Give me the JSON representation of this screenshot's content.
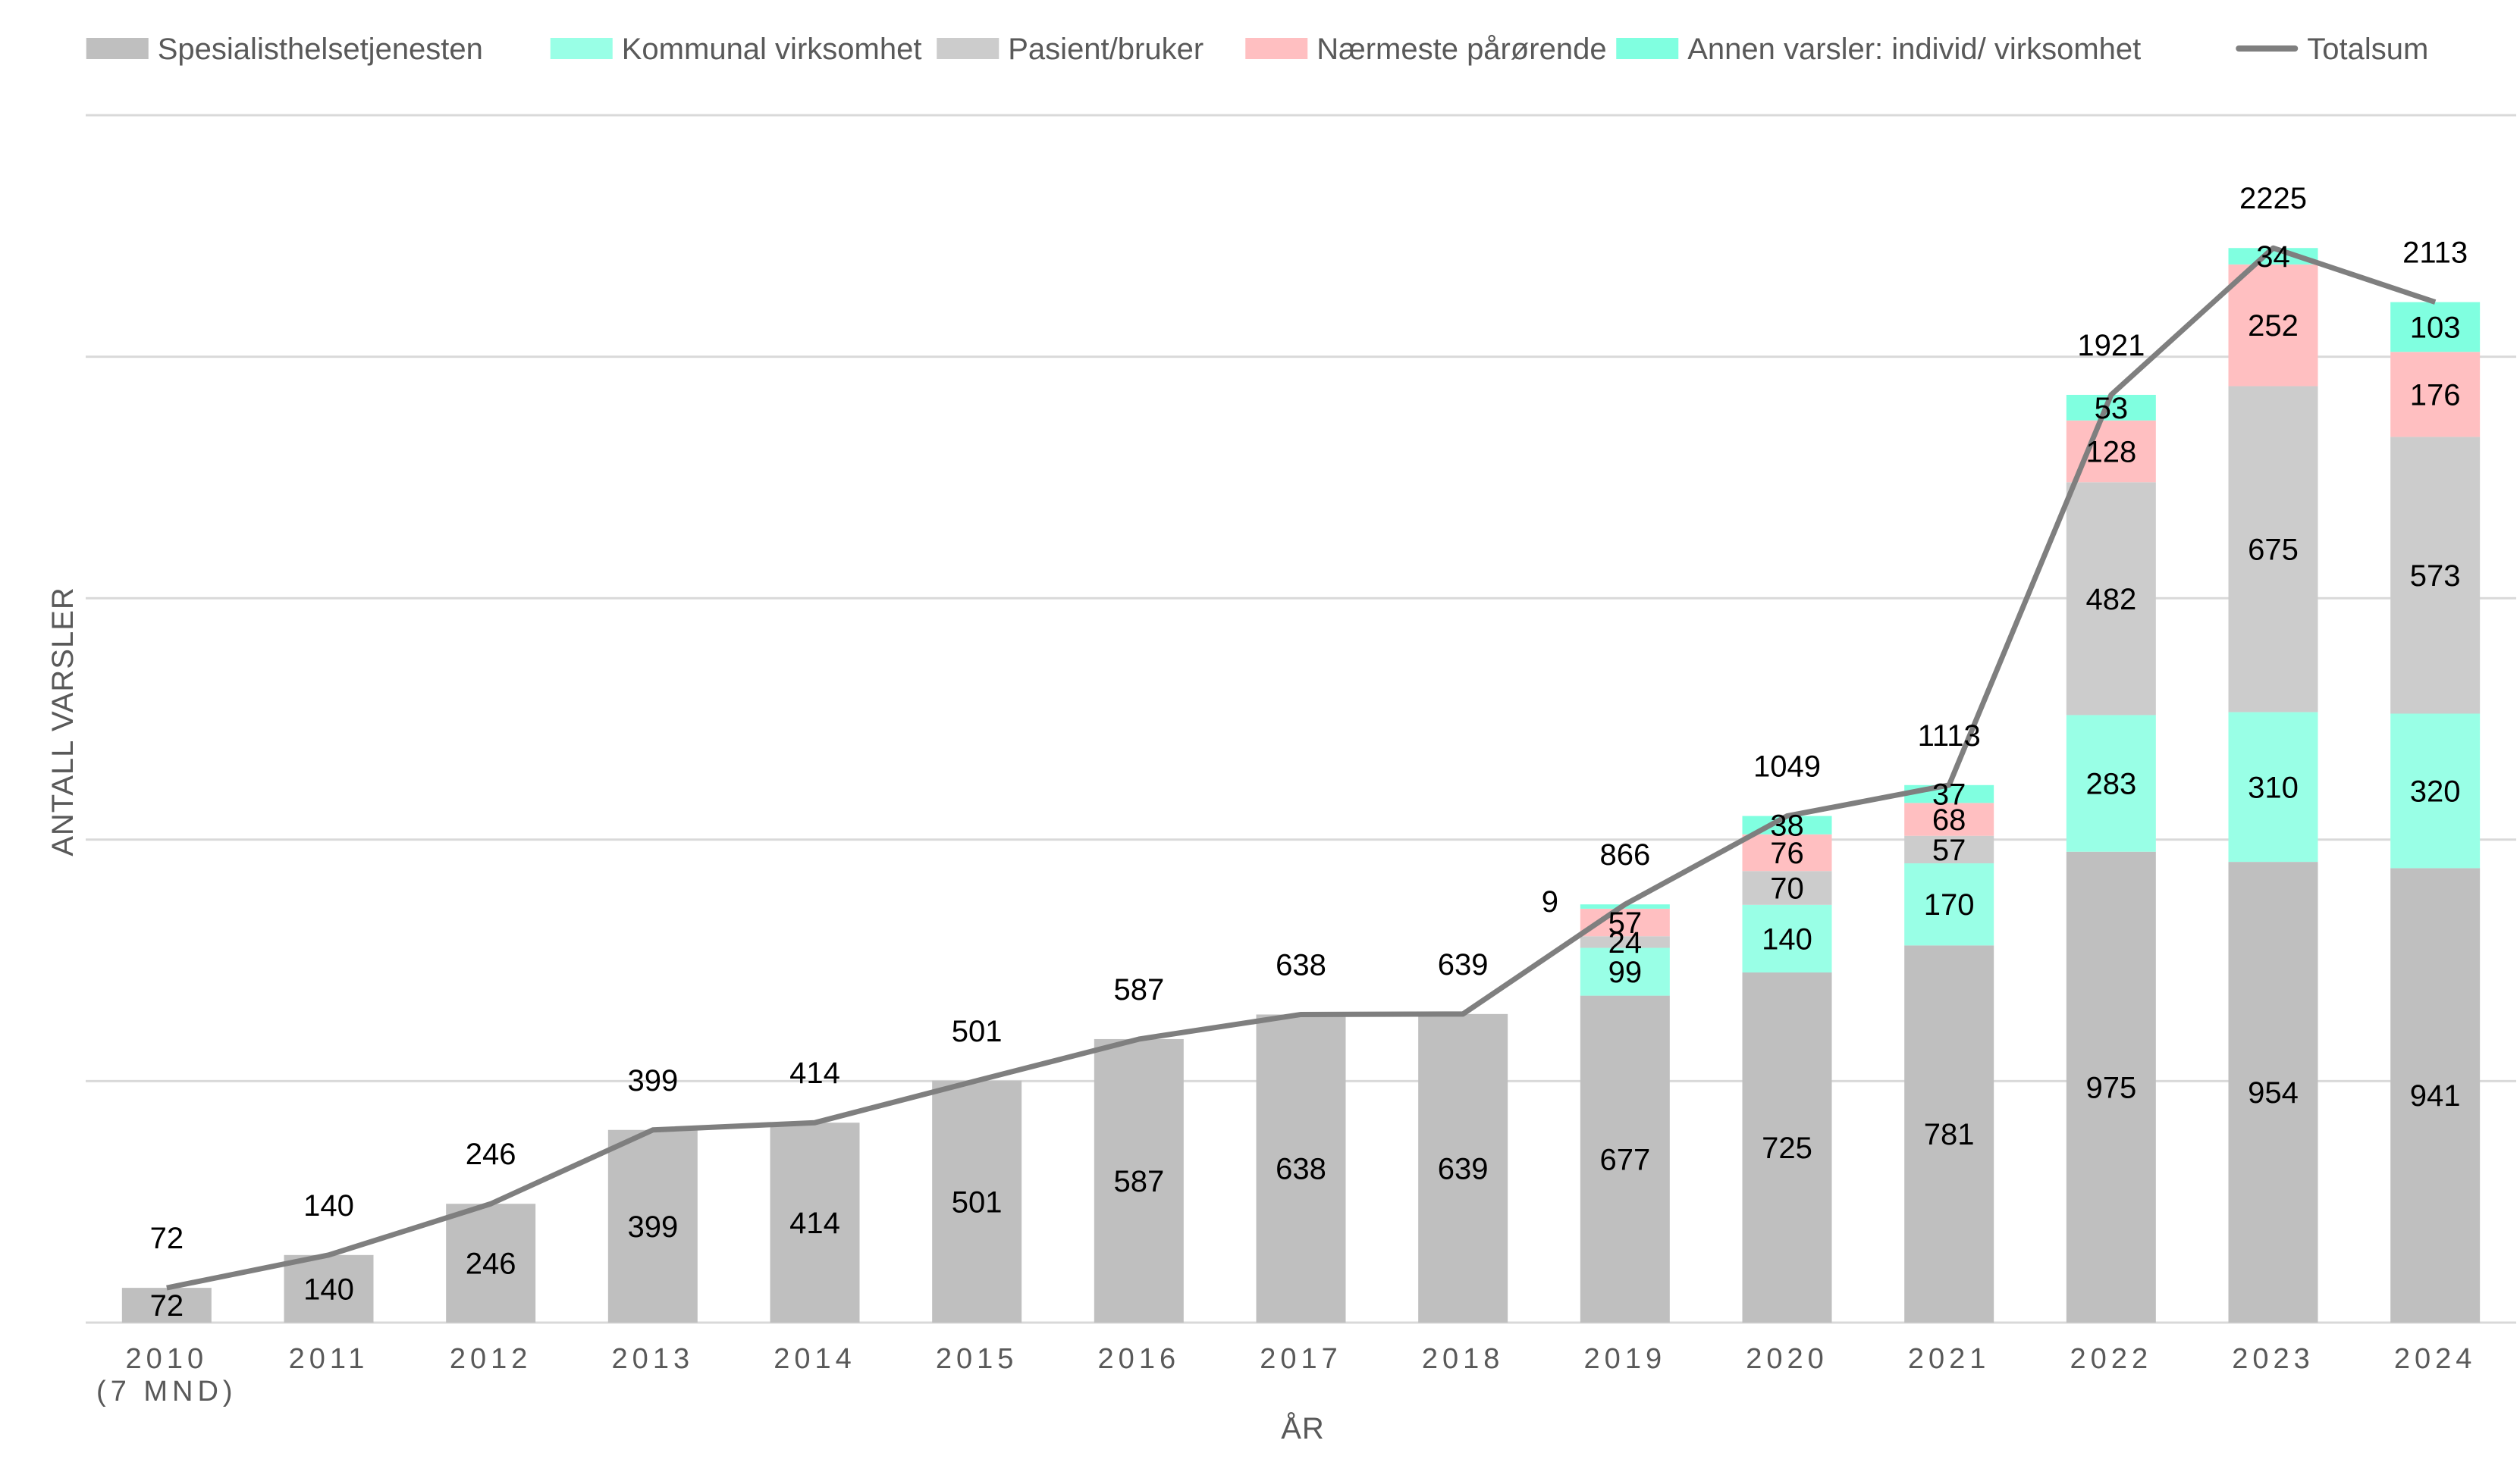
{
  "chart_data": {
    "type": "bar",
    "stacked": true,
    "title": "",
    "xlabel": "ÅR",
    "ylabel": "ANTALL VARSLER",
    "ylim": [
      0,
      2500
    ],
    "grid": true,
    "legend_position": "top",
    "categories": [
      "2010",
      "2011",
      "2012",
      "2013",
      "2014",
      "2015",
      "2016",
      "2017",
      "2018",
      "2019",
      "2020",
      "2021",
      "2022",
      "2023",
      "2024"
    ],
    "category_sublabels": [
      "(7 MND)",
      "",
      "",
      "",
      "",
      "",
      "",
      "",
      "",
      "",
      "",
      "",
      "",
      "",
      ""
    ],
    "series": [
      {
        "name": "Spesialisthelsetjenesten",
        "color": "#BFBFBF",
        "values": [
          72,
          140,
          246,
          399,
          414,
          501,
          587,
          638,
          639,
          677,
          725,
          781,
          975,
          954,
          941
        ]
      },
      {
        "name": "Kommunal virksomhet",
        "color": "#99FFE6",
        "values": [
          null,
          null,
          null,
          null,
          null,
          null,
          null,
          null,
          null,
          99,
          140,
          170,
          283,
          310,
          320
        ]
      },
      {
        "name": "Pasient/bruker",
        "color": "#CCCCCC",
        "values": [
          null,
          null,
          null,
          null,
          null,
          null,
          null,
          null,
          null,
          24,
          70,
          57,
          482,
          675,
          573
        ]
      },
      {
        "name": "Nærmeste pårørende",
        "color": "#FFBFC1",
        "values": [
          null,
          null,
          null,
          null,
          null,
          null,
          null,
          null,
          null,
          57,
          76,
          68,
          128,
          252,
          176
        ]
      },
      {
        "name": "Annen varsler: individ/ virksomhet",
        "color": "#80FFE0",
        "values": [
          null,
          null,
          null,
          null,
          null,
          null,
          null,
          null,
          null,
          9,
          38,
          37,
          53,
          34,
          103
        ]
      }
    ],
    "line_series": {
      "name": "Totalsum",
      "color": "#7F7F7F",
      "values": [
        72,
        140,
        246,
        399,
        414,
        501,
        587,
        638,
        639,
        866,
        1049,
        1113,
        1921,
        2225,
        2113
      ]
    }
  }
}
